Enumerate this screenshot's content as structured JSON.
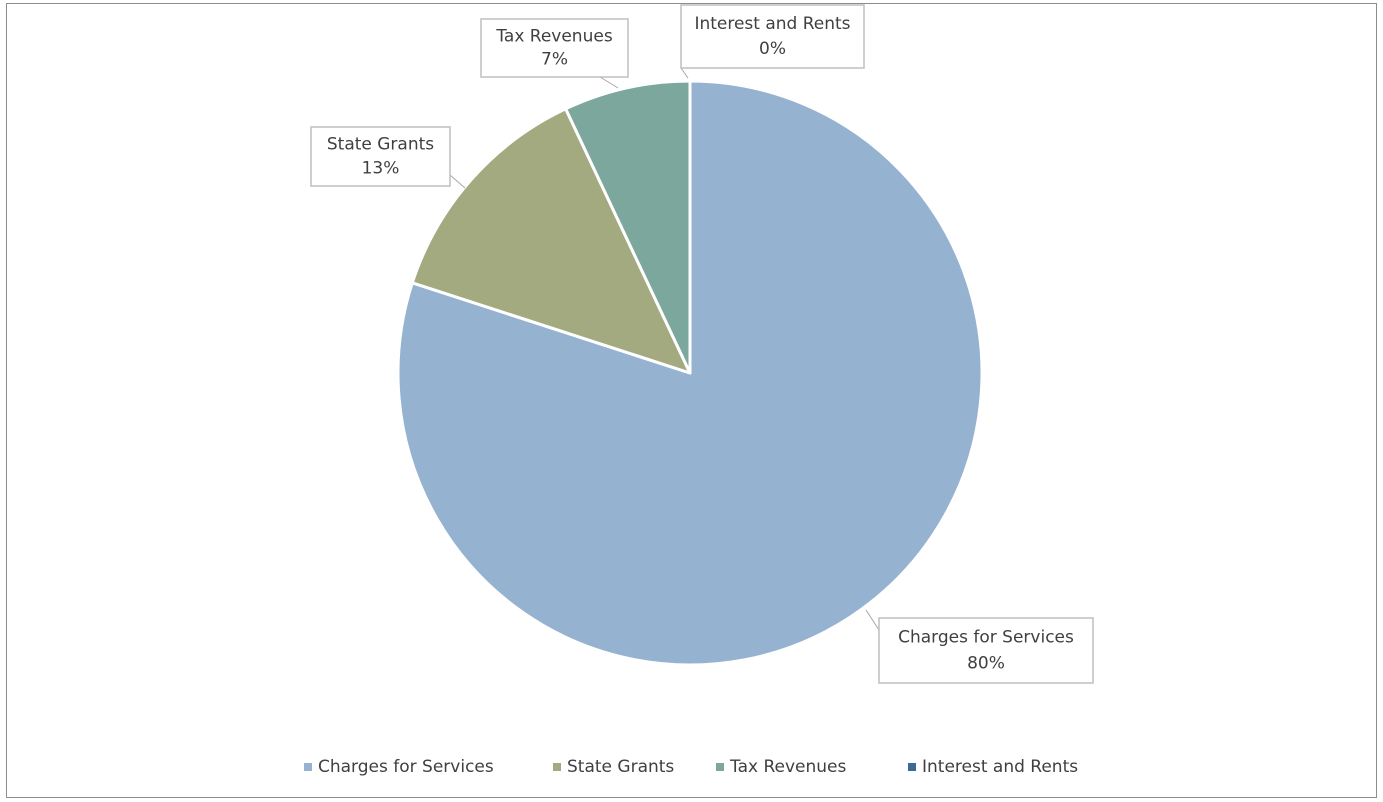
{
  "chart_data": {
    "type": "pie",
    "categories": [
      "Charges for Services",
      "State Grants",
      "Tax Revenues",
      "Interest and Rents"
    ],
    "values": [
      80,
      13,
      7,
      0
    ],
    "value_labels": [
      "80%",
      "13%",
      "7%",
      "0%"
    ],
    "colors": [
      "#95b3d1",
      "#a3aa80",
      "#7ba79c",
      "#3d6a94"
    ],
    "legend": "bottom"
  }
}
